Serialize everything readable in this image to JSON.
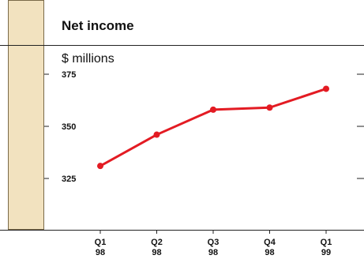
{
  "chart_data": {
    "type": "line",
    "title": "Net income",
    "ylabel": "$ millions",
    "categories": [
      [
        "Q1",
        "98"
      ],
      [
        "Q2",
        "98"
      ],
      [
        "Q3",
        "98"
      ],
      [
        "Q4",
        "98"
      ],
      [
        "Q1",
        "99"
      ]
    ],
    "series": [
      {
        "values": [
          331,
          346,
          358,
          359,
          368
        ],
        "color": "#e31b23"
      }
    ],
    "yticks": [
      325,
      350,
      375
    ],
    "ylim": [
      305,
      380
    ],
    "grid": false,
    "legend": "none",
    "colors": {
      "line": "#e31b23",
      "side_panel": "#f2e2bf",
      "side_panel_border": "#7a6a4a",
      "axis": "#222222"
    }
  }
}
